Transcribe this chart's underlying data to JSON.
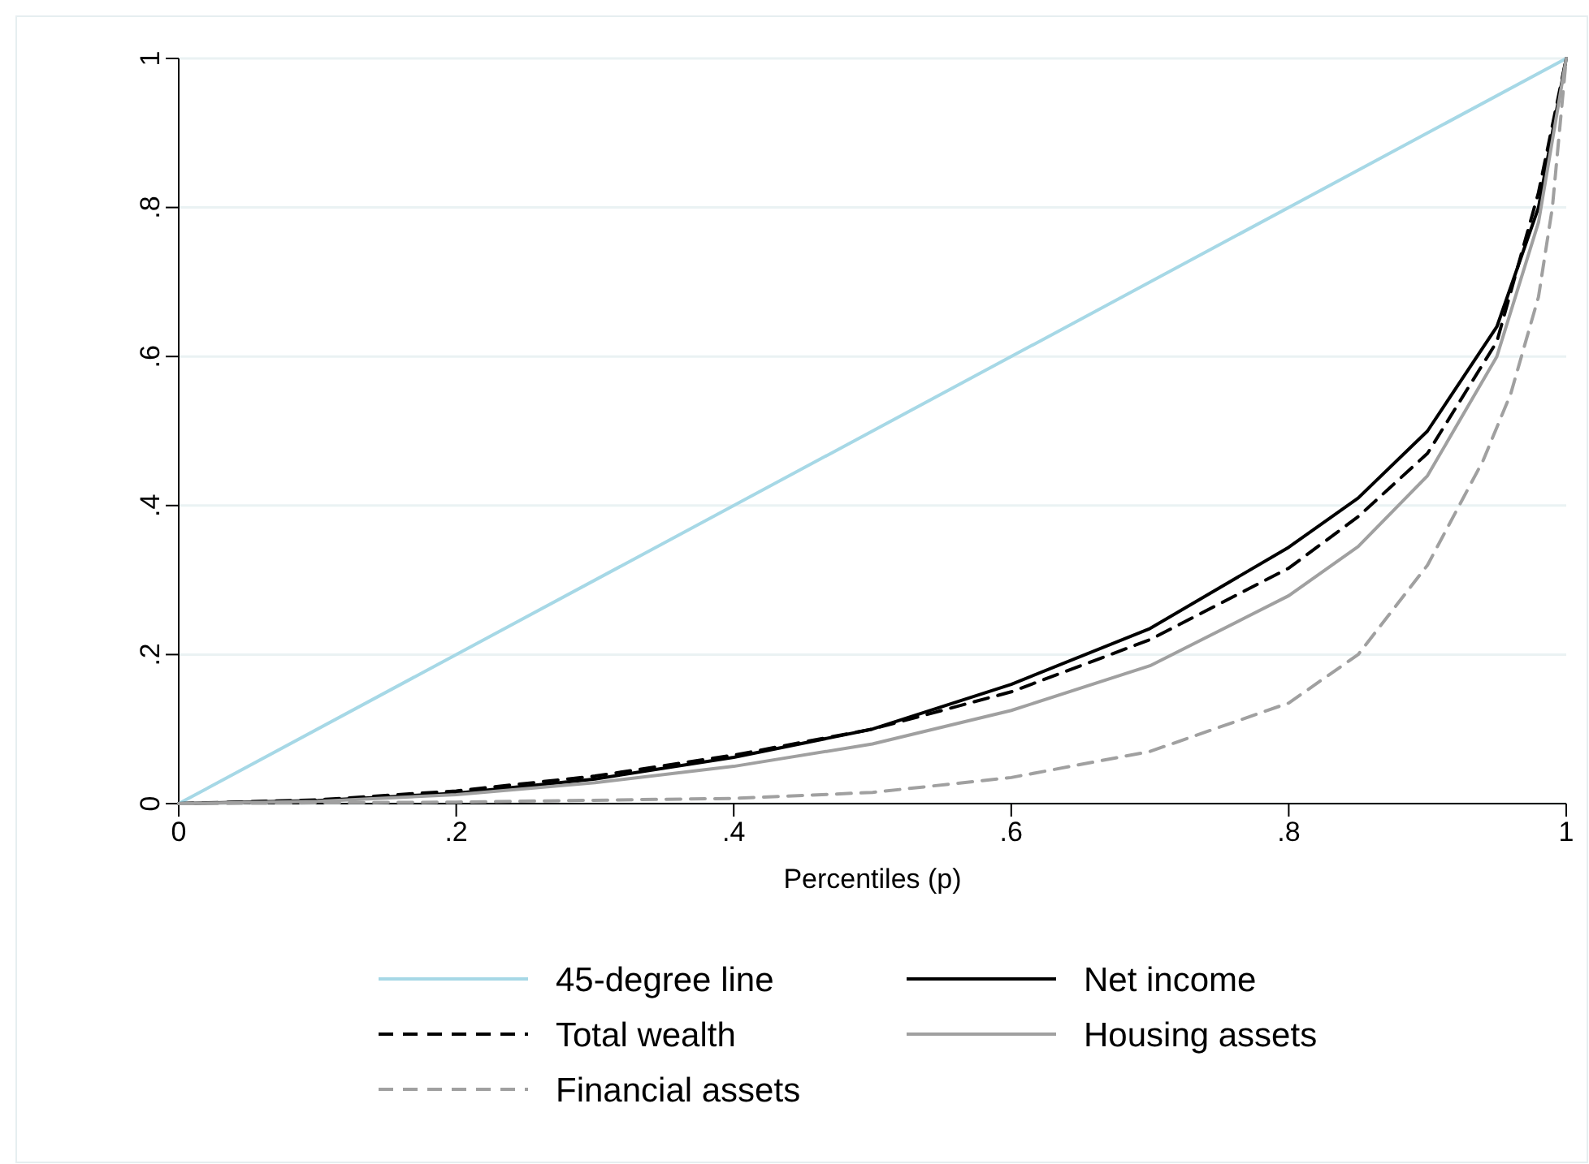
{
  "chart_data": {
    "type": "line",
    "xlabel": "Percentiles (p)",
    "xlim": [
      0,
      1
    ],
    "ylim": [
      0,
      1
    ],
    "xticks": [
      0,
      {
        "value": 0.2,
        "label": ".2"
      },
      {
        "value": 0.4,
        "label": ".4"
      },
      {
        "value": 0.6,
        "label": ".6"
      },
      {
        "value": 0.8,
        "label": ".8"
      },
      1
    ],
    "yticks": [
      0,
      {
        "value": 0.2,
        "label": ".2"
      },
      {
        "value": 0.4,
        "label": ".4"
      },
      {
        "value": 0.6,
        "label": ".6"
      },
      {
        "value": 0.8,
        "label": ".8"
      },
      1
    ],
    "grid": "y",
    "legend": "bottom",
    "marker": "none",
    "series": [
      {
        "name": "45-degree line",
        "color": "#a6d8e6",
        "line_style": "solid",
        "x": [
          0,
          1
        ],
        "values": [
          0,
          1
        ]
      },
      {
        "name": "Net income",
        "color": "#000000",
        "line_style": "solid",
        "x": [
          0,
          0.1,
          0.2,
          0.3,
          0.4,
          0.5,
          0.6,
          0.7,
          0.8,
          0.85,
          0.9,
          0.95,
          0.98,
          1
        ],
        "values": [
          0,
          0.004,
          0.014,
          0.033,
          0.062,
          0.1,
          0.16,
          0.235,
          0.344,
          0.41,
          0.5,
          0.64,
          0.8,
          1
        ]
      },
      {
        "name": "Total wealth",
        "color": "#000000",
        "line_style": "dashed",
        "x": [
          0,
          0.1,
          0.2,
          0.3,
          0.4,
          0.5,
          0.6,
          0.7,
          0.8,
          0.85,
          0.9,
          0.95,
          0.98,
          1
        ],
        "values": [
          0,
          0.005,
          0.017,
          0.037,
          0.065,
          0.1,
          0.15,
          0.22,
          0.316,
          0.385,
          0.47,
          0.62,
          0.82,
          1
        ]
      },
      {
        "name": "Housing assets",
        "color": "#a0a0a0",
        "line_style": "solid",
        "x": [
          0,
          0.1,
          0.2,
          0.3,
          0.4,
          0.5,
          0.6,
          0.7,
          0.8,
          0.85,
          0.9,
          0.95,
          0.98,
          1
        ],
        "values": [
          0,
          0.003,
          0.012,
          0.028,
          0.05,
          0.08,
          0.125,
          0.185,
          0.279,
          0.345,
          0.44,
          0.6,
          0.78,
          1
        ]
      },
      {
        "name": "Financial assets",
        "color": "#a0a0a0",
        "line_style": "dashed",
        "x": [
          0,
          0.2,
          0.4,
          0.5,
          0.6,
          0.7,
          0.8,
          0.85,
          0.9,
          0.94,
          0.96,
          0.98,
          0.99,
          1
        ],
        "values": [
          0,
          0.002,
          0.007,
          0.015,
          0.035,
          0.07,
          0.135,
          0.2,
          0.32,
          0.46,
          0.55,
          0.68,
          0.8,
          1
        ]
      }
    ]
  }
}
